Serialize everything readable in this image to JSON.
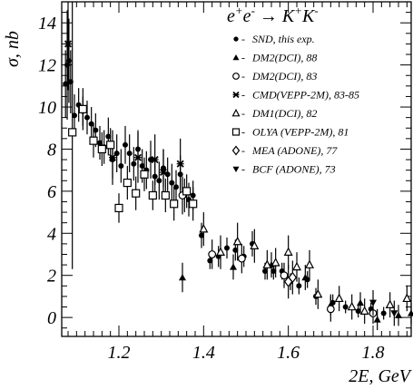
{
  "chart_data": {
    "type": "scatter",
    "title": "",
    "xlabel": "2E, GeV",
    "ylabel": "σ, nb",
    "xlim": [
      1.065,
      1.89
    ],
    "ylim": [
      -0.9,
      15
    ],
    "x_ticks": [
      "1.2",
      "1.4",
      "1.6",
      "1.8"
    ],
    "x_tick_values": [
      1.2,
      1.4,
      1.6,
      1.8
    ],
    "y_ticks": [
      "0",
      "2",
      "4",
      "6",
      "8",
      "10",
      "12",
      "14"
    ],
    "y_tick_values": [
      0,
      2,
      4,
      6,
      8,
      10,
      12,
      14
    ],
    "legend_placement": "top-right",
    "legend_title": {
      "main": "e e → K K",
      "sup1": "+",
      "sup2": "-",
      "sup3": "+",
      "sup4": "-"
    },
    "series": [
      {
        "name": "SND, this exp.",
        "marker": "filled-circle",
        "points": [
          [
            1.074,
            11.1,
            1.6
          ],
          [
            1.078,
            12.0,
            2.6
          ],
          [
            1.082,
            12.2,
            2.0
          ],
          [
            1.086,
            11.2,
            1.5
          ],
          [
            1.095,
            9.6,
            1.0
          ],
          [
            1.105,
            10.1,
            0.8
          ],
          [
            1.115,
            9.8,
            0.7
          ],
          [
            1.125,
            9.5,
            0.8
          ],
          [
            1.135,
            9.2,
            0.8
          ],
          [
            1.145,
            8.9,
            0.8
          ],
          [
            1.155,
            8.3,
            0.8
          ],
          [
            1.165,
            8.1,
            0.8
          ],
          [
            1.175,
            8.6,
            0.9
          ],
          [
            1.185,
            7.5,
            0.9
          ],
          [
            1.195,
            7.8,
            0.9
          ],
          [
            1.205,
            7.2,
            0.8
          ],
          [
            1.215,
            8.2,
            0.9
          ],
          [
            1.225,
            7.8,
            0.9
          ],
          [
            1.235,
            7.3,
            0.8
          ],
          [
            1.245,
            8.0,
            0.9
          ],
          [
            1.255,
            7.2,
            0.8
          ],
          [
            1.265,
            7.0,
            0.9
          ],
          [
            1.275,
            7.5,
            0.9
          ],
          [
            1.285,
            6.7,
            0.9
          ],
          [
            1.295,
            6.5,
            0.9
          ],
          [
            1.305,
            7.1,
            0.9
          ],
          [
            1.315,
            6.8,
            0.8
          ],
          [
            1.325,
            6.4,
            0.9
          ],
          [
            1.335,
            6.2,
            0.8
          ],
          [
            1.345,
            6.8,
            0.9
          ],
          [
            1.355,
            5.8,
            0.8
          ],
          [
            1.365,
            5.6,
            0.8
          ],
          [
            1.375,
            5.8,
            0.7
          ],
          [
            1.395,
            3.9,
            0.6
          ],
          [
            1.415,
            2.7,
            0.4
          ],
          [
            1.435,
            2.9,
            0.5
          ],
          [
            1.455,
            3.3,
            0.5
          ],
          [
            1.475,
            3.2,
            0.5
          ],
          [
            1.495,
            2.9,
            0.5
          ],
          [
            1.515,
            3.5,
            0.6
          ],
          [
            1.545,
            2.2,
            0.4
          ],
          [
            1.565,
            2.2,
            0.4
          ],
          [
            1.585,
            2.2,
            0.4
          ],
          [
            1.605,
            1.7,
            0.4
          ],
          [
            1.625,
            1.5,
            0.4
          ],
          [
            1.645,
            1.8,
            0.4
          ],
          [
            1.665,
            1.0,
            0.4
          ],
          [
            1.705,
            0.7,
            0.4
          ],
          [
            1.735,
            0.5,
            0.3
          ],
          [
            1.765,
            0.3,
            0.3
          ],
          [
            1.795,
            0.4,
            0.3
          ],
          [
            1.825,
            0.2,
            0.3
          ]
        ]
      },
      {
        "name": "DM2(DCI), 88",
        "marker": "filled-triangle-up",
        "points": [
          [
            1.35,
            1.9,
            0.7
          ],
          [
            1.47,
            2.4,
            0.6
          ],
          [
            1.56,
            2.5,
            0.6
          ],
          [
            1.64,
            1.9,
            0.6
          ],
          [
            1.7,
            0.6,
            0.5
          ],
          [
            1.77,
            0.7,
            0.5
          ],
          [
            1.81,
            -0.1,
            0.5
          ],
          [
            1.86,
            0.1,
            0.5
          ],
          [
            1.89,
            0.2,
            0.5
          ]
        ]
      },
      {
        "name": "DM2(DCI), 83",
        "marker": "open-circle",
        "points": [
          [
            1.35,
            5.8,
            0.9
          ],
          [
            1.42,
            3.0,
            0.7
          ],
          [
            1.49,
            2.8,
            0.7
          ],
          [
            1.59,
            2.0,
            0.6
          ],
          [
            1.7,
            0.4,
            0.6
          ],
          [
            1.8,
            0.2,
            0.5
          ]
        ]
      },
      {
        "name": "CMD(VEPP-2M), 83-85",
        "marker": "asterisk",
        "points": [
          [
            1.08,
            13.0,
            2.2
          ],
          [
            1.185,
            7.6,
            1.3
          ],
          [
            1.245,
            7.6,
            1.2
          ],
          [
            1.285,
            7.5,
            1.2
          ],
          [
            1.305,
            6.9,
            1.1
          ],
          [
            1.345,
            7.3,
            1.2
          ]
        ]
      },
      {
        "name": "DM1(DCI), 82",
        "marker": "open-triangle-up",
        "points": [
          [
            1.4,
            4.2,
            0.8
          ],
          [
            1.44,
            3.1,
            0.8
          ],
          [
            1.48,
            3.6,
            0.9
          ],
          [
            1.52,
            3.4,
            0.8
          ],
          [
            1.55,
            2.5,
            0.7
          ],
          [
            1.57,
            2.6,
            0.7
          ],
          [
            1.6,
            3.1,
            0.8
          ],
          [
            1.62,
            2.4,
            0.7
          ],
          [
            1.65,
            2.5,
            0.7
          ],
          [
            1.67,
            1.1,
            0.7
          ],
          [
            1.72,
            0.9,
            0.6
          ],
          [
            1.75,
            0.5,
            0.6
          ],
          [
            1.78,
            0.3,
            0.6
          ],
          [
            1.84,
            0.6,
            0.6
          ],
          [
            1.88,
            0.9,
            0.6
          ]
        ]
      },
      {
        "name": "OLYA (VEPP-2M), 81",
        "marker": "open-square",
        "points": [
          [
            1.09,
            8.8,
            6.5
          ],
          [
            1.115,
            9.9,
            1.0
          ],
          [
            1.14,
            8.4,
            0.8
          ],
          [
            1.16,
            8.0,
            0.8
          ],
          [
            1.18,
            8.2,
            0.8
          ],
          [
            1.2,
            5.2,
            0.7
          ],
          [
            1.22,
            6.4,
            0.8
          ],
          [
            1.24,
            5.9,
            0.8
          ],
          [
            1.26,
            6.8,
            0.8
          ],
          [
            1.28,
            5.8,
            0.7
          ],
          [
            1.31,
            5.8,
            0.8
          ],
          [
            1.33,
            5.4,
            0.8
          ],
          [
            1.36,
            6.0,
            0.8
          ],
          [
            1.375,
            5.4,
            0.8
          ]
        ]
      },
      {
        "name": "MEA (ADONE), 77",
        "marker": "open-diamond",
        "points": [
          [
            1.6,
            1.7,
            0.8
          ],
          [
            1.61,
            1.9,
            0.8
          ]
        ]
      },
      {
        "name": "BCF (ADONE), 73",
        "marker": "filled-triangle-down",
        "points": [
          [
            1.8,
            0.7,
            0.6
          ],
          [
            1.85,
            0.2,
            0.6
          ]
        ]
      }
    ],
    "colors": {
      "marker": "#000000",
      "axis": "#000000",
      "background": "#ffffff"
    }
  }
}
